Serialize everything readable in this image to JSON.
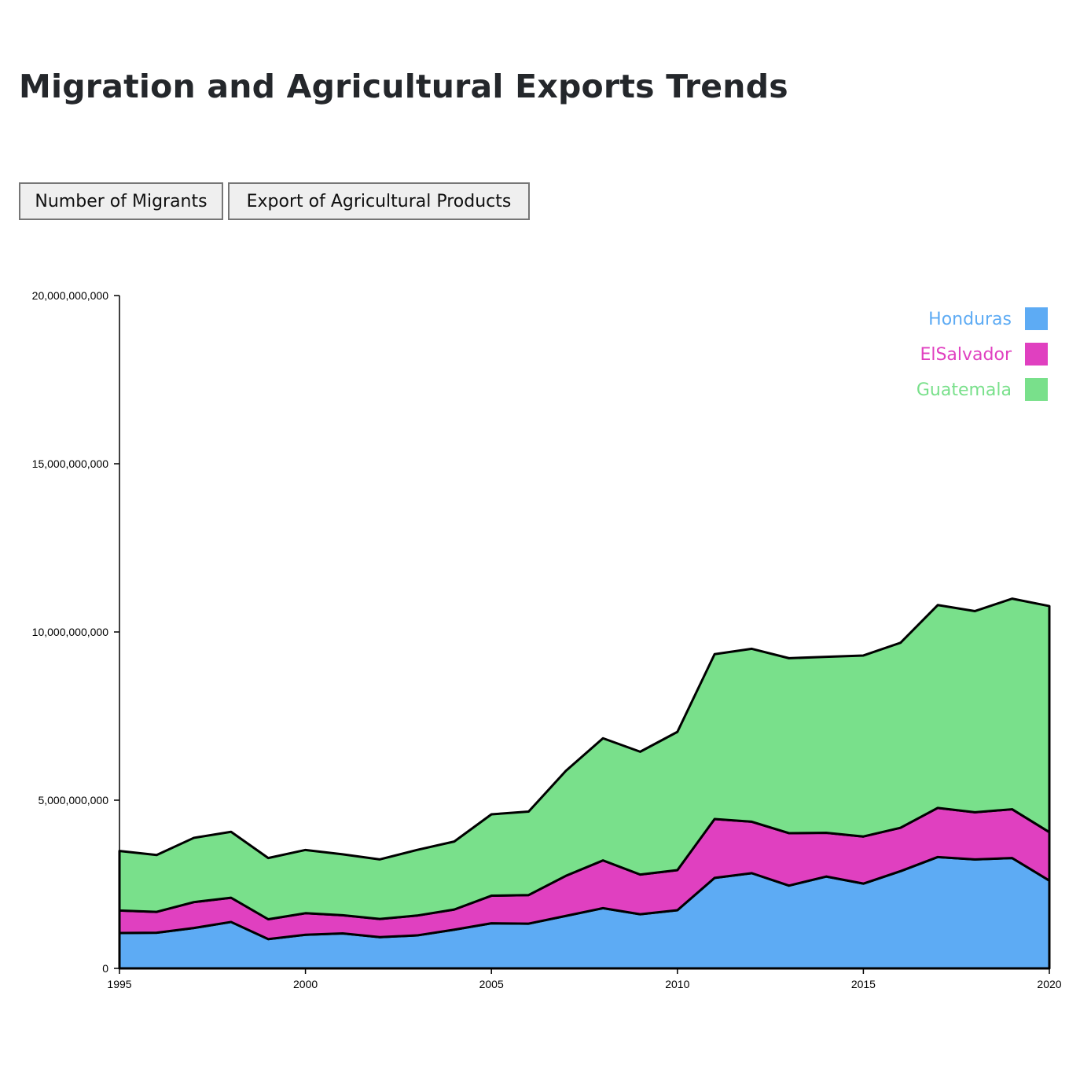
{
  "page": {
    "title": "Migration and Agricultural Exports Trends"
  },
  "buttons": {
    "migrants_label": "Number of Migrants",
    "exports_label": "Export of Agricultural Products"
  },
  "chart_data": {
    "type": "area",
    "stacked": true,
    "title": "",
    "xlabel": "",
    "ylabel": "",
    "xlim": [
      1995,
      2020
    ],
    "ylim": [
      0,
      20000000000
    ],
    "x_ticks": [
      "1995",
      "2000",
      "2005",
      "2010",
      "2015",
      "2020"
    ],
    "y_ticks": [
      "0",
      "5,000,000,000",
      "10,000,000,000",
      "15,000,000,000",
      "20,000,000,000"
    ],
    "legend_position": "top-right",
    "grid": false,
    "x": [
      1995,
      1996,
      1997,
      1998,
      1999,
      2000,
      2001,
      2002,
      2003,
      2004,
      2005,
      2006,
      2007,
      2008,
      2009,
      2010,
      2011,
      2012,
      2013,
      2014,
      2015,
      2016,
      2017,
      2018,
      2019,
      2020
    ],
    "series": [
      {
        "name": "Honduras",
        "color": "#5dabf4",
        "values": [
          1050000000,
          1060000000,
          1200000000,
          1380000000,
          870000000,
          1000000000,
          1040000000,
          930000000,
          980000000,
          1150000000,
          1340000000,
          1330000000,
          1560000000,
          1790000000,
          1610000000,
          1730000000,
          2690000000,
          2830000000,
          2460000000,
          2730000000,
          2520000000,
          2890000000,
          3310000000,
          3240000000,
          3280000000,
          2610000000
        ]
      },
      {
        "name": "ElSalvador",
        "color": "#e040c0",
        "values": [
          670000000,
          620000000,
          770000000,
          720000000,
          590000000,
          640000000,
          540000000,
          540000000,
          590000000,
          600000000,
          820000000,
          850000000,
          1190000000,
          1420000000,
          1180000000,
          1190000000,
          1750000000,
          1530000000,
          1560000000,
          1300000000,
          1400000000,
          1290000000,
          1460000000,
          1400000000,
          1450000000,
          1440000000
        ]
      },
      {
        "name": "Guatemala",
        "color": "#79e08b",
        "values": [
          1770000000,
          1690000000,
          1910000000,
          1960000000,
          1820000000,
          1880000000,
          1810000000,
          1770000000,
          1950000000,
          2020000000,
          2420000000,
          2480000000,
          3120000000,
          3630000000,
          3650000000,
          4110000000,
          4900000000,
          5140000000,
          5200000000,
          5230000000,
          5380000000,
          5500000000,
          6030000000,
          5980000000,
          6260000000,
          6720000000
        ]
      }
    ]
  }
}
